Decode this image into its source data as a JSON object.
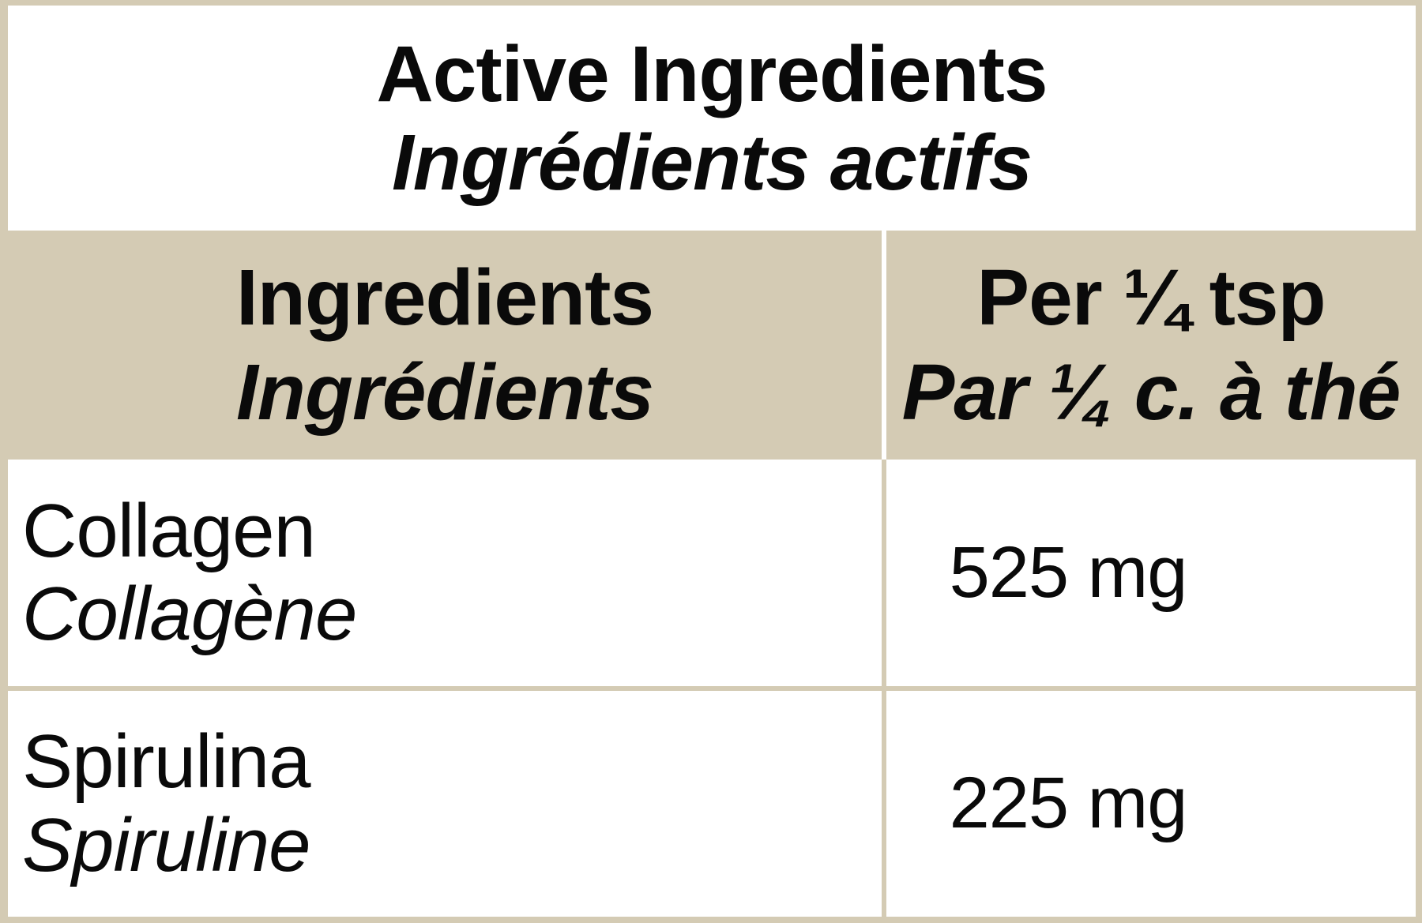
{
  "colors": {
    "background_beige": "#d4cbb4",
    "cell_white": "#ffffff",
    "text_black": "#0a0a0a"
  },
  "title": {
    "en": "Active Ingredients",
    "fr": "Ingrédients actifs"
  },
  "table": {
    "header": {
      "ingredients_en": "Ingredients",
      "ingredients_fr": "Ingrédients",
      "amount_en": "Per ¼ tsp",
      "amount_fr": "Par ¼ c. à thé"
    },
    "rows": [
      {
        "name_en": "Collagen",
        "name_fr": "Collagène",
        "amount": "525 mg"
      },
      {
        "name_en": "Spirulina",
        "name_fr": "Spiruline",
        "amount": "225 mg"
      }
    ]
  }
}
